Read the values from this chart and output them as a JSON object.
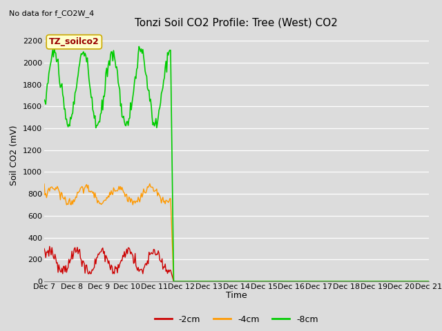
{
  "title": "Tonzi Soil CO2 Profile: Tree (West) CO2",
  "subtitle": "No data for f_CO2W_4",
  "ylabel": "Soil CO2 (mV)",
  "xlabel": "Time",
  "ylim": [
    0,
    2300
  ],
  "yticks": [
    0,
    200,
    400,
    600,
    800,
    1000,
    1200,
    1400,
    1600,
    1800,
    2000,
    2200
  ],
  "bg_color": "#dcdcdc",
  "plot_bg_color": "#dcdcdc",
  "legend_label": "TZ_soilco2",
  "legend_box_color": "#ffffcc",
  "legend_box_edge": "#ccaa00",
  "colors": {
    "2cm": "#cc0000",
    "4cm": "#ff9900",
    "8cm": "#00cc00"
  },
  "line_widths": {
    "2cm": 1.0,
    "4cm": 1.0,
    "8cm": 1.2
  },
  "xtick_labels": [
    "Dec 7",
    "Dec 8",
    "Dec 9",
    "Dec 10",
    "Dec 11",
    "Dec 12",
    "Dec 13",
    "Dec 14",
    "Dec 15",
    "Dec 16",
    "Dec 17",
    "Dec 18",
    "Dec 19",
    "Dec 20",
    "Dec 21"
  ],
  "title_fontsize": 11,
  "subtitle_fontsize": 8,
  "axis_label_fontsize": 9,
  "tick_fontsize": 8
}
